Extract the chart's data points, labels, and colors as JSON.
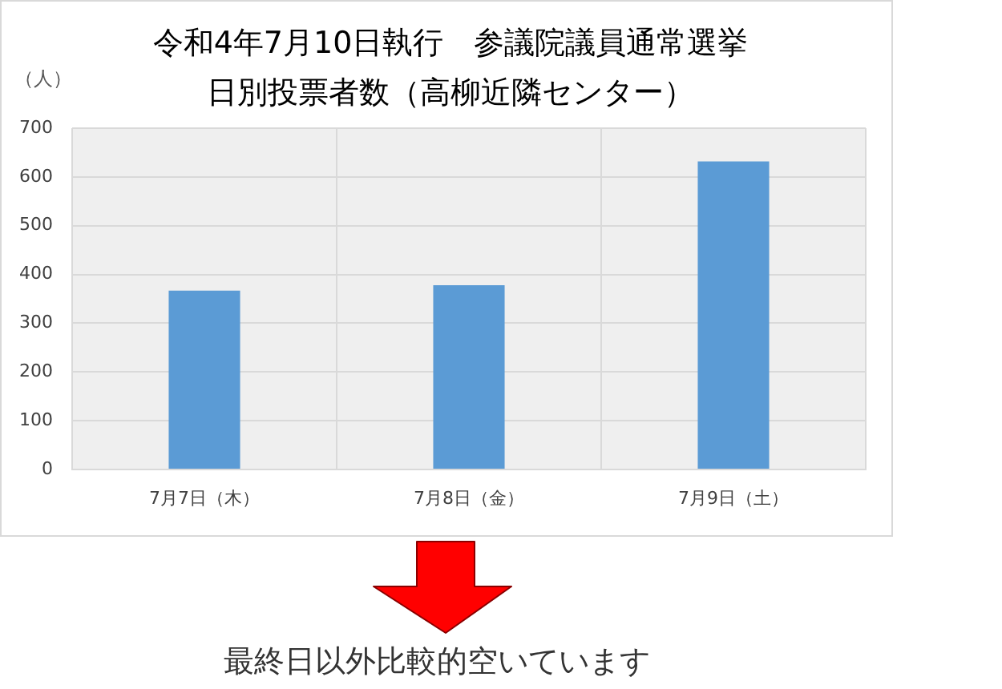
{
  "chart_data": {
    "type": "bar",
    "title": "令和4年7月10日執行　参議院議員通常選挙",
    "subtitle": "日別投票者数（高柳近隣センター）",
    "ylabel": "（人）",
    "categories": [
      "7月7日（木）",
      "7月8日（金）",
      "7月9日（土）"
    ],
    "values": [
      367,
      378,
      632
    ],
    "color": "#5b9bd5",
    "ylim": [
      0,
      700
    ],
    "yticks": [
      0,
      100,
      200,
      300,
      400,
      500,
      600,
      700
    ],
    "grid": true,
    "annotations": [
      "最終日以外比較的空いています"
    ]
  }
}
